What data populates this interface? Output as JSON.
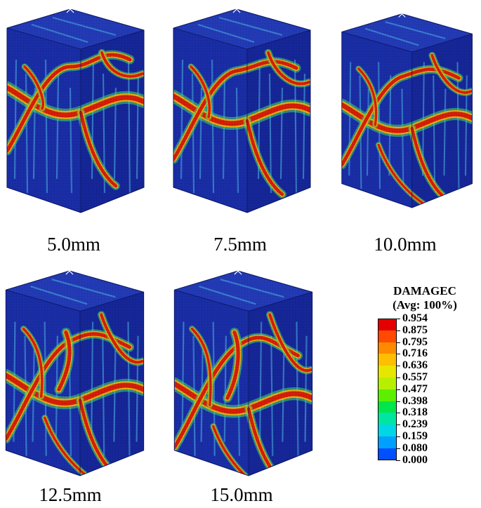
{
  "panels": [
    {
      "label": "5.0mm",
      "stage": 1
    },
    {
      "label": "7.5mm",
      "stage": 2
    },
    {
      "label": "10.0mm",
      "stage": 3
    },
    {
      "label": "12.5mm",
      "stage": 4
    },
    {
      "label": "15.0mm",
      "stage": 5
    }
  ],
  "legend": {
    "variable": "DAMAGEC",
    "averaging": "(Avg: 100%)",
    "values": [
      "0.954",
      "0.875",
      "0.795",
      "0.716",
      "0.636",
      "0.557",
      "0.477",
      "0.398",
      "0.318",
      "0.239",
      "0.159",
      "0.080",
      "0.000"
    ],
    "colors": [
      "#e30000",
      "#ff4a00",
      "#ff8a00",
      "#ffbe00",
      "#e6e600",
      "#b6f000",
      "#5cf000",
      "#00e64b",
      "#00e6a0",
      "#00d6e6",
      "#00a0ff",
      "#0050ff",
      "#0000e6"
    ]
  },
  "colors": {
    "base": "#1a2ea8",
    "top": "#233bb8",
    "side": "#16279a",
    "crack_core": "#d81e0a",
    "crack_mid": "#ffb400",
    "crack_halo": "#40e070"
  }
}
